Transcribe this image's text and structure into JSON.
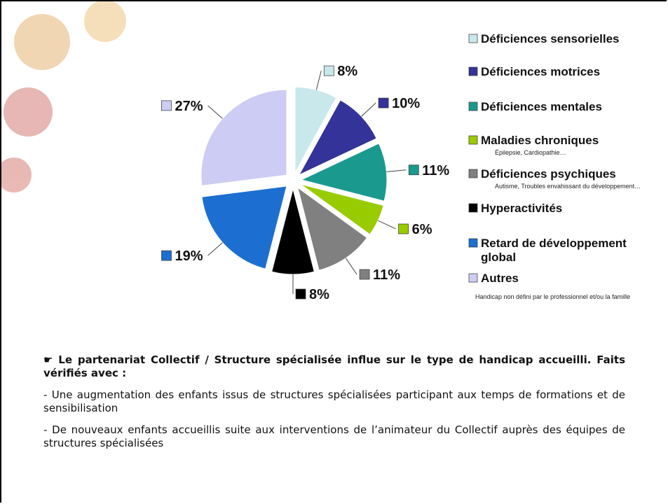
{
  "chart_data": {
    "type": "pie",
    "categories": [
      "Déficiences sensorielles",
      "Déficiences motrices",
      "Déficiences mentales",
      "Maladies chroniques",
      "Déficiences psychiques",
      "Hyperactivités",
      "Retard de développement global",
      "Autres"
    ],
    "notes": [
      null,
      null,
      null,
      "Épilepsie, Cardiopathie…",
      "Autisme, Troubles envahissant du développement…",
      null,
      null,
      "Handicap non défini par le professionnel et/ou la famille"
    ],
    "values": [
      8,
      10,
      11,
      6,
      11,
      8,
      19,
      27
    ],
    "value_labels": [
      "8%",
      "10%",
      "11%",
      "6%",
      "11%",
      "8%",
      "19%",
      "27%"
    ],
    "colors": [
      "#c9e8ec",
      "#333399",
      "#1a9a8e",
      "#99cc00",
      "#808080",
      "#000000",
      "#1c6fd0",
      "#ccccf4"
    ]
  },
  "text": {
    "heading": "☛ Le partenariat Collectif / Structure spécialisée influe sur le type de handicap accueilli. Faits vérifiés avec :",
    "items": [
      "- Une augmentation des enfants issus de structures spécialisées participant aux temps de formations et de sensibilisation",
      "- De nouveaux enfants accueillis suite aux interventions de l’animateur du Collectif auprès des équipes de structures spécialisées"
    ]
  }
}
